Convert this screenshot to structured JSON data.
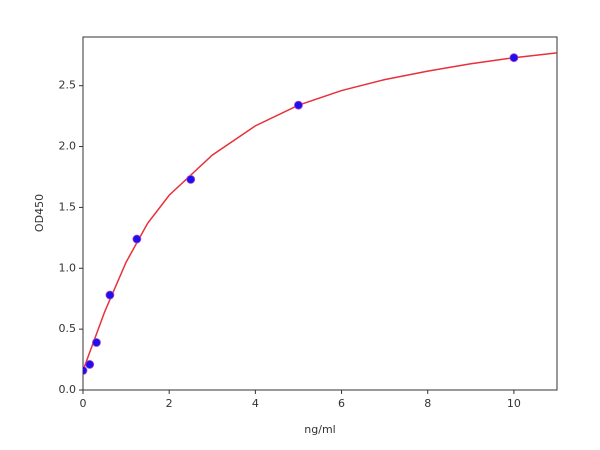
{
  "chart_data": {
    "type": "scatter",
    "xlabel": "ng/ml",
    "ylabel": "OD450",
    "xlim": [
      0,
      11
    ],
    "ylim": [
      0,
      2.9
    ],
    "xticks": [
      0,
      2,
      4,
      6,
      8,
      10
    ],
    "yticks": [
      {
        "value": 0,
        "label": "0.0"
      },
      0.5,
      {
        "value": 1,
        "label": "1.0"
      },
      1.5,
      {
        "value": 2,
        "label": "2.0"
      },
      2.5
    ],
    "series": [
      {
        "type": "line",
        "color": "#e8303a",
        "x": [
          0,
          0.5,
          1,
          1.5,
          2,
          3,
          4,
          5,
          6,
          7,
          8,
          9,
          10,
          11
        ],
        "values": [
          0.16,
          0.64,
          1.05,
          1.37,
          1.6,
          1.93,
          2.17,
          2.34,
          2.46,
          2.55,
          2.62,
          2.68,
          2.73,
          2.77
        ]
      },
      {
        "type": "scatter",
        "color": "#1a10f0",
        "x": [
          0,
          0.156,
          0.3125,
          0.625,
          1.25,
          2.5,
          5,
          10
        ],
        "values": [
          0.16,
          0.21,
          0.39,
          0.78,
          1.24,
          1.73,
          2.34,
          2.73
        ]
      }
    ]
  }
}
